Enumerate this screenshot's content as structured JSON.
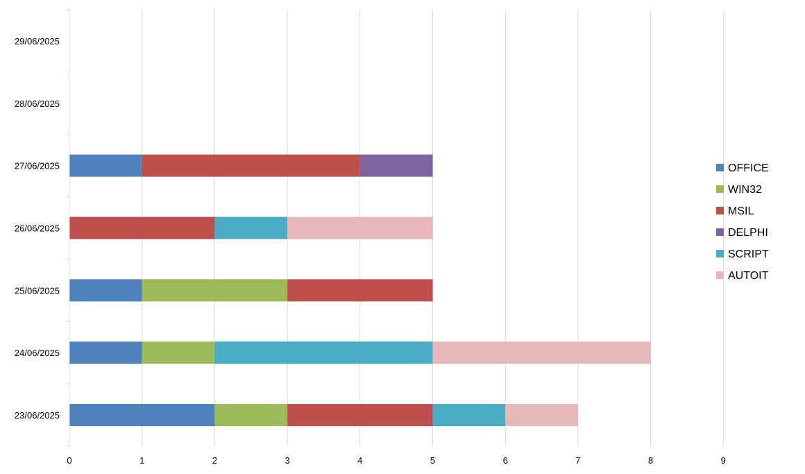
{
  "chart_data": {
    "type": "bar",
    "orientation": "horizontal",
    "stacked": true,
    "categories": [
      "23/06/2025",
      "24/06/2025",
      "25/06/2025",
      "26/06/2025",
      "27/06/2025",
      "28/06/2025",
      "29/06/2025"
    ],
    "series": [
      {
        "name": "OFFICE",
        "color": "#4F81BD",
        "values": [
          2,
          1,
          1,
          0,
          1,
          0,
          0
        ]
      },
      {
        "name": "WIN32",
        "color": "#9BBB59",
        "values": [
          1,
          1,
          2,
          0,
          0,
          0,
          0
        ]
      },
      {
        "name": "MSIL",
        "color": "#C0504D",
        "values": [
          2,
          0,
          2,
          2,
          3,
          0,
          0
        ]
      },
      {
        "name": "DELPHI",
        "color": "#8064A2",
        "values": [
          0,
          0,
          0,
          0,
          1,
          0,
          0
        ]
      },
      {
        "name": "SCRIPT",
        "color": "#4BACC6",
        "values": [
          1,
          3,
          0,
          1,
          0,
          0,
          0
        ]
      },
      {
        "name": "AUTOIT",
        "color": "#E6B9B8",
        "values": [
          1,
          3,
          0,
          2,
          0,
          0,
          0
        ]
      }
    ],
    "xlim": [
      0,
      9
    ],
    "xticks": [
      "0",
      "1",
      "2",
      "3",
      "4",
      "5",
      "6",
      "7",
      "8",
      "9"
    ],
    "title": "",
    "xlabel": "",
    "ylabel": "",
    "grid": "vertical",
    "legend_position": "right"
  }
}
